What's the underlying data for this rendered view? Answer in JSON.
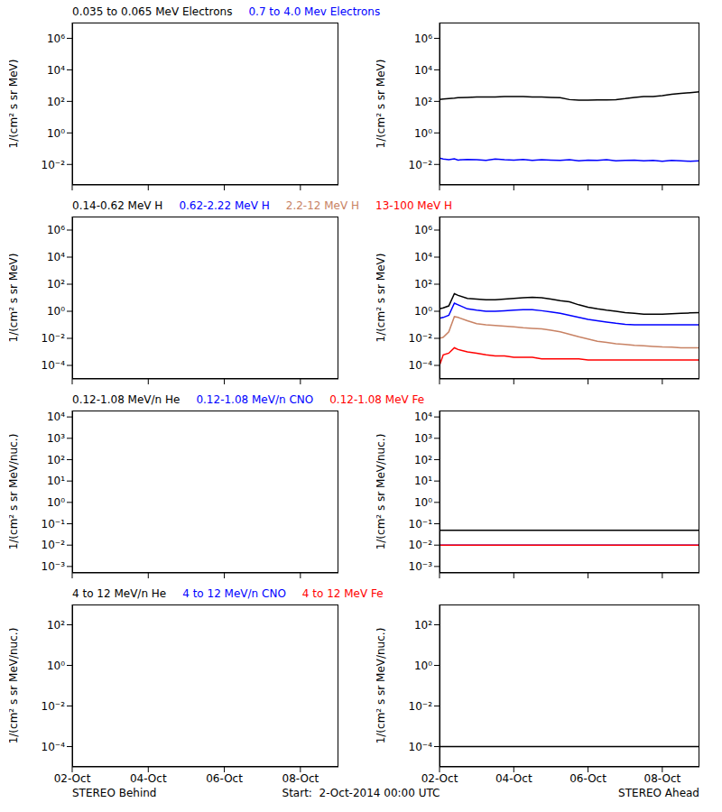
{
  "chart_data": [
    {
      "type": "line",
      "ylabel": "1/(cm² s sr MeV)",
      "log": "y",
      "tick_labels": "y",
      "xlim": [
        0,
        7
      ],
      "xticks": [
        {
          "value": 0,
          "label": "02-Oct"
        },
        {
          "value": 2,
          "label": "04-Oct"
        },
        {
          "value": 4,
          "label": "06-Oct"
        },
        {
          "value": 6,
          "label": "08-Oct"
        }
      ],
      "ylim": [
        0.0005,
        10000000
      ],
      "yticks": [
        {
          "value": 0.01,
          "label": "10⁻²"
        },
        {
          "value": 1,
          "label": "10⁰"
        },
        {
          "value": 100,
          "label": "10²"
        },
        {
          "value": 10000,
          "label": "10⁴"
        },
        {
          "value": 1000000,
          "label": "10⁶"
        }
      ],
      "x": [
        0,
        0.1,
        0.25,
        0.4,
        0.5,
        0.75,
        1,
        1.25,
        1.5,
        1.75,
        2,
        2.25,
        2.5,
        2.75,
        3,
        3.25,
        3.5,
        3.75,
        4,
        4.25,
        4.5,
        4.75,
        5,
        5.25,
        5.5,
        5.75,
        6,
        6.25,
        6.5,
        6.75,
        7
      ],
      "series": [
        {
          "name": "0.035 to 0.065 MeV Electrons",
          "color": "#000000",
          "values": [
            130,
            140,
            150,
            160,
            170,
            180,
            190,
            190,
            190,
            200,
            200,
            200,
            190,
            190,
            180,
            170,
            130,
            120,
            120,
            125,
            125,
            130,
            150,
            180,
            200,
            200,
            230,
            280,
            320,
            360,
            400
          ]
        },
        {
          "name": "0.7 to 4.0 Mev Electrons",
          "color": "#0000ff",
          "values": [
            0.025,
            0.022,
            0.02,
            0.023,
            0.019,
            0.021,
            0.02,
            0.018,
            0.022,
            0.02,
            0.019,
            0.021,
            0.018,
            0.02,
            0.019,
            0.018,
            0.02,
            0.017,
            0.019,
            0.018,
            0.02,
            0.017,
            0.018,
            0.019,
            0.017,
            0.018,
            0.016,
            0.018,
            0.017,
            0.016,
            0.017
          ]
        }
      ]
    },
    {
      "type": "line",
      "ylabel": "1/(cm² s sr MeV)",
      "log": "y",
      "tick_labels": "y",
      "xlim": [
        0,
        7
      ],
      "xticks": [
        {
          "value": 0,
          "label": "02-Oct"
        },
        {
          "value": 2,
          "label": "04-Oct"
        },
        {
          "value": 4,
          "label": "06-Oct"
        },
        {
          "value": 6,
          "label": "08-Oct"
        }
      ],
      "ylim": [
        1e-05,
        10000000
      ],
      "yticks": [
        {
          "value": 0.0001,
          "label": "10⁻⁴"
        },
        {
          "value": 0.01,
          "label": "10⁻²"
        },
        {
          "value": 1,
          "label": "10⁰"
        },
        {
          "value": 100,
          "label": "10²"
        },
        {
          "value": 10000,
          "label": "10⁴"
        },
        {
          "value": 1000000,
          "label": "10⁶"
        }
      ],
      "x": [
        0,
        0.1,
        0.25,
        0.4,
        0.5,
        0.75,
        1,
        1.25,
        1.5,
        1.75,
        2,
        2.25,
        2.5,
        2.75,
        3,
        3.25,
        3.5,
        3.75,
        4,
        4.25,
        4.5,
        4.75,
        5,
        5.25,
        5.5,
        5.75,
        6,
        6.25,
        6.5,
        6.75,
        7
      ],
      "series": [
        {
          "name": "0.14-0.62 MeV H",
          "color": "#000000",
          "values": [
            1.5,
            1.8,
            2.5,
            20,
            15,
            9,
            8,
            7,
            7,
            8,
            9,
            10,
            11,
            10,
            8,
            6,
            5,
            3,
            2,
            1.5,
            1.2,
            1,
            0.8,
            0.7,
            0.6,
            0.6,
            0.6,
            0.65,
            0.7,
            0.75,
            0.8
          ]
        },
        {
          "name": "0.62-2.22 MeV H",
          "color": "#0000ff",
          "values": [
            0.3,
            0.35,
            0.5,
            4,
            3,
            1.5,
            1.2,
            1,
            1,
            1.1,
            1.2,
            1.3,
            1.3,
            1.1,
            0.9,
            0.7,
            0.5,
            0.35,
            0.25,
            0.2,
            0.16,
            0.13,
            0.11,
            0.1,
            0.1,
            0.1,
            0.1,
            0.1,
            0.1,
            0.1,
            0.1
          ]
        },
        {
          "name": "2.2-12 MeV H",
          "color": "#c88264",
          "values": [
            0.01,
            0.012,
            0.03,
            0.4,
            0.35,
            0.2,
            0.12,
            0.1,
            0.09,
            0.08,
            0.07,
            0.06,
            0.055,
            0.05,
            0.04,
            0.03,
            0.02,
            0.013,
            0.009,
            0.006,
            0.005,
            0.004,
            0.0035,
            0.003,
            0.0028,
            0.0025,
            0.0023,
            0.0022,
            0.002,
            0.002,
            0.002
          ]
        },
        {
          "name": "13-100 MeV H",
          "color": "#ff0000",
          "values": [
            0.0001,
            0.0006,
            0.0008,
            0.002,
            0.0015,
            0.001,
            0.0008,
            0.0006,
            0.0005,
            0.0005,
            0.0004,
            0.0004,
            0.0004,
            0.0003,
            0.0003,
            0.0003,
            0.0003,
            0.0003,
            0.00025,
            0.00025,
            0.00025,
            0.00025,
            0.00025,
            0.00025,
            0.00025,
            0.00025,
            0.00025,
            0.00025,
            0.00025,
            0.00025,
            0.00025
          ]
        }
      ]
    },
    {
      "type": "line",
      "ylabel": "1/(cm² s sr MeV/nuc.)",
      "log": "y",
      "tick_labels": "y",
      "xlim": [
        0,
        7
      ],
      "xticks": [
        {
          "value": 0,
          "label": "02-Oct"
        },
        {
          "value": 2,
          "label": "04-Oct"
        },
        {
          "value": 4,
          "label": "06-Oct"
        },
        {
          "value": 6,
          "label": "08-Oct"
        }
      ],
      "ylim": [
        0.0005,
        20000
      ],
      "yticks": [
        {
          "value": 0.001,
          "label": "10⁻³"
        },
        {
          "value": 0.01,
          "label": "10⁻²"
        },
        {
          "value": 0.1,
          "label": "10⁻¹"
        },
        {
          "value": 1,
          "label": "10⁰"
        },
        {
          "value": 10,
          "label": "10¹"
        },
        {
          "value": 100,
          "label": "10²"
        },
        {
          "value": 1000,
          "label": "10³"
        },
        {
          "value": 10000,
          "label": "10⁴"
        }
      ],
      "x": [
        0,
        0.1,
        0.25,
        0.4,
        0.5,
        0.75,
        1,
        1.25,
        1.5,
        1.75,
        2,
        2.25,
        2.5,
        2.75,
        3,
        3.25,
        3.5,
        3.75,
        4,
        4.25,
        4.5,
        4.75,
        5,
        5.25,
        5.5,
        5.75,
        6,
        6.25,
        6.5,
        6.75,
        7
      ],
      "series": [
        {
          "name": "0.12-1.08 MeV/n He",
          "color": "#000000",
          "values": [
            0.05,
            0.05,
            0.05,
            0.05,
            0.05,
            0.05,
            0.05,
            0.05,
            0.05,
            0.05,
            0.05,
            0.05,
            0.05,
            0.05,
            0.05,
            0.05,
            0.05,
            0.05,
            0.05,
            0.05,
            0.05,
            0.05,
            0.05,
            0.05,
            0.05,
            0.05,
            0.05,
            0.05,
            0.05,
            0.05,
            0.05
          ]
        },
        {
          "name": "0.12-1.08 MeV/n CNO",
          "color": "#0000ff",
          "values": [
            0.01,
            0.01,
            0.01,
            0.01,
            0.01,
            0.01,
            0.01,
            0.01,
            0.01,
            0.01,
            0.01,
            0.01,
            0.01,
            0.01,
            0.01,
            0.01,
            0.01,
            0.01,
            0.01,
            0.01,
            0.01,
            0.01,
            0.01,
            0.01,
            0.01,
            0.01,
            0.01,
            0.01,
            0.01,
            0.01,
            0.01
          ]
        },
        {
          "name": "0.12-1.08 MeV Fe",
          "color": "#ff0000",
          "values": [
            0.01,
            0.01,
            0.01,
            0.01,
            0.01,
            0.01,
            0.01,
            0.01,
            0.01,
            0.01,
            0.01,
            0.01,
            0.01,
            0.01,
            0.01,
            0.01,
            0.01,
            0.01,
            0.01,
            0.01,
            0.01,
            0.01,
            0.01,
            0.01,
            0.01,
            0.01,
            0.01,
            0.01,
            0.01,
            0.01,
            0.01
          ]
        }
      ]
    },
    {
      "type": "line",
      "ylabel": "1/(cm² s sr MeV/nuc.)",
      "log": "y",
      "xlim": [
        0,
        7
      ],
      "xticks": [
        {
          "value": 0,
          "label": "02-Oct"
        },
        {
          "value": 2,
          "label": "04-Oct"
        },
        {
          "value": 4,
          "label": "06-Oct"
        },
        {
          "value": 6,
          "label": "08-Oct"
        }
      ],
      "ylim": [
        1e-05,
        1000
      ],
      "yticks": [
        {
          "value": 0.0001,
          "label": "10⁻⁴"
        },
        {
          "value": 0.01,
          "label": "10⁻²"
        },
        {
          "value": 1,
          "label": "10⁰"
        },
        {
          "value": 100,
          "label": "10²"
        }
      ],
      "x": [
        0,
        0.1,
        0.25,
        0.4,
        0.5,
        0.75,
        1,
        1.25,
        1.5,
        1.75,
        2,
        2.25,
        2.5,
        2.75,
        3,
        3.25,
        3.5,
        3.75,
        4,
        4.25,
        4.5,
        4.75,
        5,
        5.25,
        5.5,
        5.75,
        6,
        6.25,
        6.5,
        6.75,
        7
      ],
      "series": [
        {
          "name": "4 to 12 MeV/n He",
          "color": "#000000",
          "values": [
            0.0001,
            0.0001,
            0.0001,
            0.0001,
            0.0001,
            0.0001,
            0.0001,
            0.0001,
            0.0001,
            0.0001,
            0.0001,
            0.0001,
            0.0001,
            0.0001,
            0.0001,
            0.0001,
            0.0001,
            0.0001,
            0.0001,
            0.0001,
            0.0001,
            0.0001,
            0.0001,
            0.0001,
            0.0001,
            0.0001,
            0.0001,
            0.0001,
            0.0001,
            0.0001,
            0.0001
          ]
        },
        {
          "name": "4 to 12 MeV/n CNO",
          "color": "#0000ff",
          "values": [
            null,
            null,
            null,
            null,
            null,
            null,
            null,
            null,
            null,
            null,
            null,
            null,
            null,
            null,
            null,
            null,
            null,
            null,
            null,
            null,
            null,
            null,
            null,
            null,
            null,
            null,
            null,
            null,
            null,
            null,
            null
          ]
        },
        {
          "name": "4 to 12 MeV Fe",
          "color": "#ff0000",
          "values": [
            null,
            null,
            null,
            null,
            null,
            null,
            null,
            null,
            null,
            null,
            null,
            null,
            null,
            null,
            null,
            null,
            null,
            null,
            null,
            null,
            null,
            null,
            null,
            null,
            null,
            null,
            null,
            null,
            null,
            null,
            null
          ]
        }
      ]
    }
  ],
  "footer": {
    "behind": "STEREO Behind",
    "start": "Start:  2-Oct-2014 00:00 UTC",
    "ahead": "STEREO Ahead"
  }
}
